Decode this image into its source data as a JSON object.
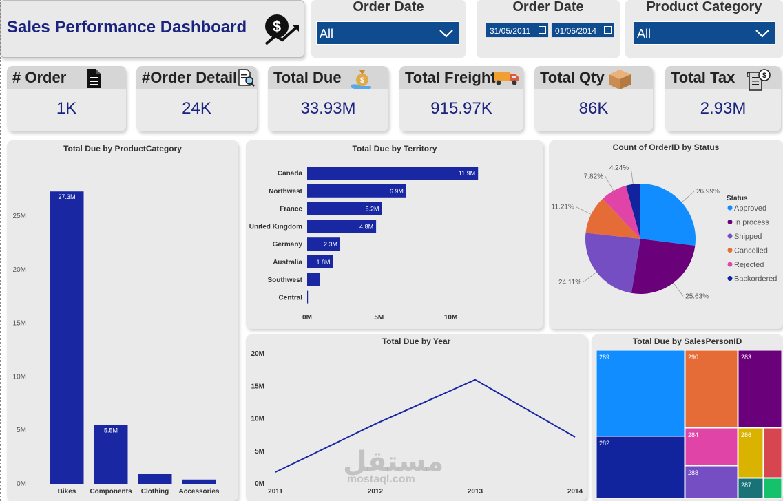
{
  "header": {
    "title": "Sales Performance Dashboard"
  },
  "slicers": {
    "order_date_1": {
      "title": "Order Date",
      "value": "All"
    },
    "order_date_2": {
      "title": "Order Date",
      "start": "31/05/2011",
      "end": "01/05/2014"
    },
    "product_category": {
      "title": "Product Category",
      "value": "All"
    }
  },
  "kpis": [
    {
      "label": "# Order",
      "value": "1K",
      "icon": "document-icon"
    },
    {
      "label": "#Order Detail",
      "value": "24K",
      "icon": "search-document-icon"
    },
    {
      "label": "Total Due",
      "value": "33.93M",
      "icon": "money-bag-icon"
    },
    {
      "label": "Total Freight",
      "value": "915.97K",
      "icon": "truck-icon"
    },
    {
      "label": "Total Qty",
      "value": "86K",
      "icon": "box-icon"
    },
    {
      "label": "Total Tax",
      "value": "2.93M",
      "icon": "tax-receipt-icon"
    }
  ],
  "colors": {
    "bar": "#1a27a3",
    "navy": "#1a237e",
    "dropdown": "#0f4c8f"
  },
  "chart_data": [
    {
      "type": "bar",
      "title": "Total Due by ProductCategory",
      "categories": [
        "Bikes",
        "Components",
        "Clothing",
        "Accessories"
      ],
      "values": [
        27.3,
        5.5,
        0.9,
        0.4
      ],
      "data_labels": [
        "27.3M",
        "5.5M",
        "",
        ""
      ],
      "yticks": [
        "0M",
        "5M",
        "10M",
        "15M",
        "20M",
        "25M"
      ],
      "ylim": [
        0,
        29.5
      ]
    },
    {
      "type": "bar",
      "orientation": "horizontal",
      "title": "Total Due by Territory",
      "categories": [
        "Canada",
        "Northwest",
        "France",
        "United Kingdom",
        "Germany",
        "Australia",
        "Southwest",
        "Central"
      ],
      "values": [
        11.9,
        6.9,
        5.2,
        4.8,
        2.3,
        1.8,
        0.9,
        0.05
      ],
      "data_labels": [
        "11.9M",
        "6.9M",
        "5.2M",
        "4.8M",
        "2.3M",
        "1.8M",
        "",
        ""
      ],
      "xticks": [
        "0M",
        "5M",
        "10M"
      ],
      "xlim": [
        0,
        14
      ]
    },
    {
      "type": "pie",
      "title": "Count of OrderID by Status",
      "legend_title": "Status",
      "slices": [
        {
          "name": "Approved",
          "value": 26.99,
          "label": "26.99%",
          "color": "#118dff"
        },
        {
          "name": "In process",
          "value": 25.63,
          "label": "25.63%",
          "color": "#6b007b"
        },
        {
          "name": "Shipped",
          "value": 24.11,
          "label": "24.11%",
          "color": "#744ec2"
        },
        {
          "name": "Cancelled",
          "value": 11.21,
          "label": "11.21%",
          "color": "#e66c37"
        },
        {
          "name": "Rejected",
          "value": 7.82,
          "label": "7.82%",
          "color": "#e044a7"
        },
        {
          "name": "Backordered",
          "value": 4.24,
          "label": "4.24%",
          "color": "#12239e"
        }
      ]
    },
    {
      "type": "line",
      "title": "Total Due by Year",
      "x": [
        "2011",
        "2012",
        "2013",
        "2014"
      ],
      "values": [
        1.8,
        9.2,
        16.0,
        7.2
      ],
      "yticks": [
        "0M",
        "5M",
        "10M",
        "15M",
        "20M"
      ],
      "ylim": [
        0,
        20
      ]
    },
    {
      "type": "treemap",
      "title": "Total Due by SalesPersonID",
      "items": [
        {
          "id": "289",
          "color": "#118dff"
        },
        {
          "id": "282",
          "color": "#12239e"
        },
        {
          "id": "290",
          "color": "#e66c37"
        },
        {
          "id": "283",
          "color": "#6b007b"
        },
        {
          "id": "284",
          "color": "#e044a7"
        },
        {
          "id": "288",
          "color": "#744ec2"
        },
        {
          "id": "286",
          "color": "#d9b300"
        },
        {
          "id": "287",
          "color": "#197278"
        },
        {
          "id": "",
          "color": "#d64550"
        },
        {
          "id": "",
          "color": "#15c26b"
        }
      ]
    }
  ],
  "watermark": {
    "arabic": "مستقل",
    "latin": "mostaql.com"
  }
}
